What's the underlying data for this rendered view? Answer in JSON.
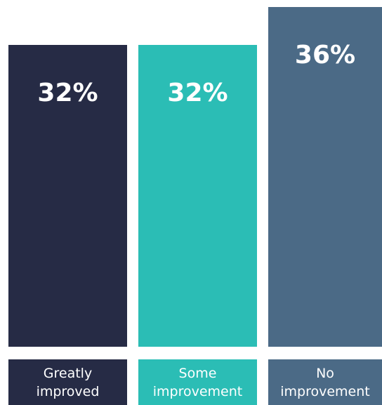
{
  "chart_data": {
    "type": "bar",
    "categories": [
      "Greatly improved",
      "Some improvement",
      "No improvement"
    ],
    "values": [
      32,
      32,
      36
    ],
    "value_labels": [
      "32%",
      "32%",
      "36%"
    ],
    "colors": [
      "#262b45",
      "#2bbdb5",
      "#4b6a86"
    ]
  }
}
